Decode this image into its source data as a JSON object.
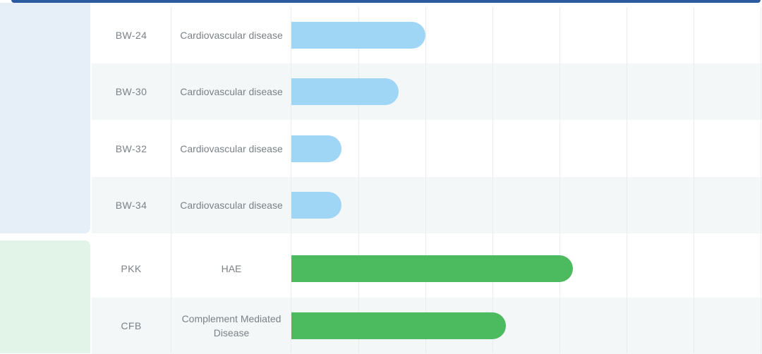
{
  "colors": {
    "header_bar": "#2b5a9e",
    "cardiovascular_bar": "#a0d6f5",
    "complement_bar": "#4cbb60",
    "text": "#7b8287"
  },
  "chart_data": {
    "type": "bar",
    "orientation": "horizontal",
    "title": "",
    "xlabel": "",
    "ylabel": "",
    "grid": true,
    "xlim": [
      0,
      7
    ],
    "rows": [
      {
        "name": "BW-24",
        "indication": "Cardiovascular disease",
        "value": 2.0,
        "group": "cardiovascular"
      },
      {
        "name": "BW-30",
        "indication": "Cardiovascular disease",
        "value": 1.6,
        "group": "cardiovascular"
      },
      {
        "name": "BW-32",
        "indication": "Cardiovascular disease",
        "value": 0.75,
        "group": "cardiovascular"
      },
      {
        "name": "BW-34",
        "indication": "Cardiovascular disease",
        "value": 0.75,
        "group": "cardiovascular"
      },
      {
        "name": "PKK",
        "indication": "HAE",
        "value": 4.2,
        "group": "complement"
      },
      {
        "name": "CFB",
        "indication": "Complement Mediated Disease",
        "value": 3.2,
        "group": "complement"
      }
    ]
  }
}
